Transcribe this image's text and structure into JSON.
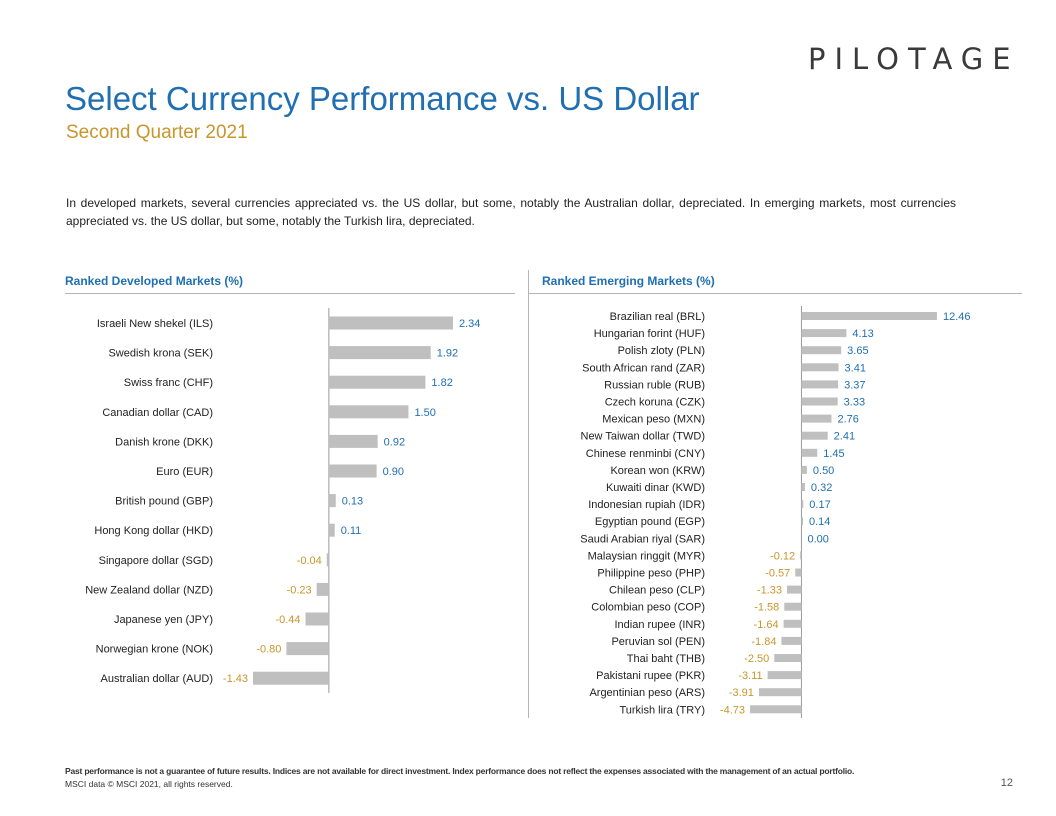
{
  "logo": {
    "text": "PILOTAGE"
  },
  "header": {
    "title": "Select Currency Performance vs. US Dollar",
    "subtitle": "Second Quarter 2021"
  },
  "intro": "In developed markets, several currencies appreciated vs. the US dollar, but some, notably the Australian dollar, depreciated. In emerging markets, most currencies appreciated vs. the US dollar, but some, notably the Turkish lira, depreciated.",
  "colors": {
    "positive_label": "#1f6fb2",
    "negative_label": "#c8962b",
    "bar": "#bfbfbf"
  },
  "chart_data": [
    {
      "type": "bar",
      "orientation": "horizontal",
      "title": "Ranked Developed Markets (%)",
      "categories": [
        "Israeli New shekel (ILS)",
        "Swedish krona (SEK)",
        "Swiss franc (CHF)",
        "Canadian dollar (CAD)",
        "Danish krone (DKK)",
        "Euro (EUR)",
        "British pound (GBP)",
        "Hong Kong dollar (HKD)",
        "Singapore dollar (SGD)",
        "New Zealand dollar (NZD)",
        "Japanese yen (JPY)",
        "Norwegian krone (NOK)",
        "Australian dollar (AUD)"
      ],
      "values": [
        2.34,
        1.92,
        1.82,
        1.5,
        0.92,
        0.9,
        0.13,
        0.11,
        -0.04,
        -0.23,
        -0.44,
        -0.8,
        -1.43
      ],
      "labels": [
        "2.34",
        "1.92",
        "1.82",
        "1.50",
        "0.92",
        "0.90",
        "0.13",
        "0.11",
        "-0.04",
        "-0.23",
        "-0.44",
        "-0.80",
        "-1.43"
      ],
      "xlim": [
        -1.43,
        2.34
      ],
      "grid": false
    },
    {
      "type": "bar",
      "orientation": "horizontal",
      "title": "Ranked Emerging Markets (%)",
      "categories": [
        "Brazilian real (BRL)",
        "Hungarian forint (HUF)",
        "Polish zloty (PLN)",
        "South African rand (ZAR)",
        "Russian ruble (RUB)",
        "Czech koruna (CZK)",
        "Mexican peso (MXN)",
        "New Taiwan dollar (TWD)",
        "Chinese renminbi (CNY)",
        "Korean won (KRW)",
        "Kuwaiti dinar (KWD)",
        "Indonesian rupiah (IDR)",
        "Egyptian pound (EGP)",
        "Saudi Arabian riyal (SAR)",
        "Malaysian ringgit (MYR)",
        "Philippine peso (PHP)",
        "Chilean peso (CLP)",
        "Colombian peso (COP)",
        "Indian rupee (INR)",
        "Peruvian sol (PEN)",
        "Thai baht (THB)",
        "Pakistani rupee (PKR)",
        "Argentinian peso (ARS)",
        "Turkish lira (TRY)"
      ],
      "values": [
        12.46,
        4.13,
        3.65,
        3.41,
        3.37,
        3.33,
        2.76,
        2.41,
        1.45,
        0.5,
        0.32,
        0.17,
        0.14,
        0.0,
        -0.12,
        -0.57,
        -1.33,
        -1.58,
        -1.64,
        -1.84,
        -2.5,
        -3.11,
        -3.91,
        -4.73
      ],
      "labels": [
        "12.46",
        "4.13",
        "3.65",
        "3.41",
        "3.37",
        "3.33",
        "2.76",
        "2.41",
        "1.45",
        "0.50",
        "0.32",
        "0.17",
        "0.14",
        "0.00",
        "-0.12",
        "-0.57",
        "-1.33",
        "-1.58",
        "-1.64",
        "-1.84",
        "-2.50",
        "-3.11",
        "-3.91",
        "-4.73"
      ],
      "xlim": [
        -4.73,
        12.46
      ],
      "grid": false
    }
  ],
  "footer": {
    "disclaimer": "Past performance is not a guarantee of future results. Indices are not available for direct investment. Index performance does not reflect the expenses associated with the management of an actual portfolio.",
    "source": "MSCI data © MSCI 2021, all rights reserved.",
    "page": "12"
  }
}
